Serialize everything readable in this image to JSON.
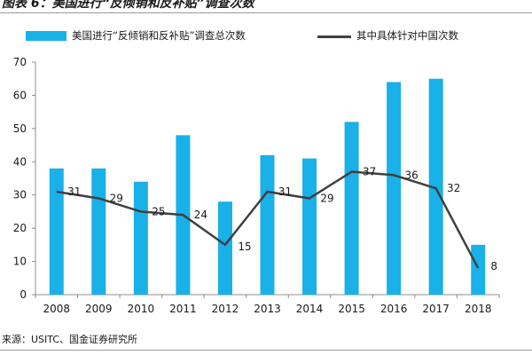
{
  "title": "图表 6：美国进行“反倾销和反补贴”调查次数",
  "source": "来源：USITC、国金证券研究所",
  "colors": {
    "bar": "#1ab0e8",
    "line": "#404040"
  },
  "chart_data": {
    "type": "bar",
    "categories": [
      "2008",
      "2009",
      "2010",
      "2011",
      "2012",
      "2013",
      "2014",
      "2015",
      "2016",
      "2017",
      "2018"
    ],
    "series": [
      {
        "name": "美国进行“反倾销和反补贴”调查总次数",
        "type": "bar",
        "values": [
          38,
          38,
          34,
          48,
          28,
          42,
          41,
          52,
          64,
          65,
          15
        ]
      },
      {
        "name": "其中具体针对中国次数",
        "type": "line",
        "values": [
          31,
          29,
          25,
          24,
          15,
          31,
          29,
          37,
          36,
          32,
          8
        ]
      }
    ],
    "ylim": [
      0,
      70
    ],
    "yticks": [
      0,
      10,
      20,
      30,
      40,
      50,
      60,
      70
    ],
    "grid": false,
    "legend": "top",
    "data_labels": "line series only"
  }
}
